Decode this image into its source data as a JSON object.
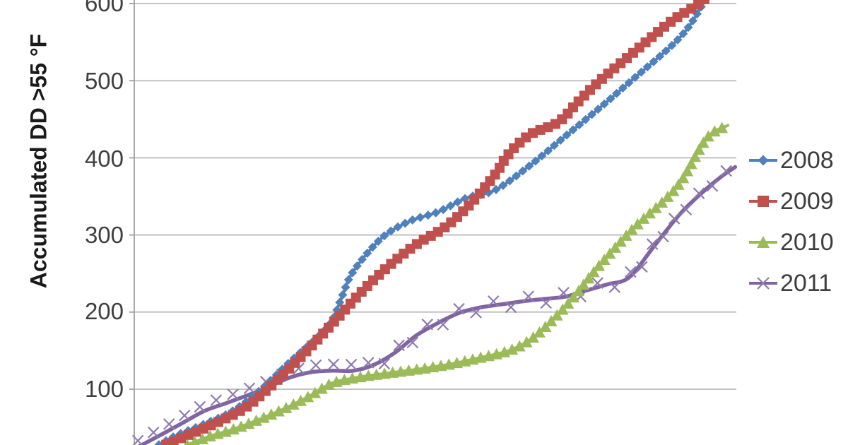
{
  "figure": {
    "background": "#ffffff",
    "note": "Chart cropped: x-axis labels and chart title not visible; top y label 600 partially clipped"
  },
  "colors": {
    "gridline": "#c2c2c2",
    "axis_line": "#a8a8a8",
    "tick_text": "#3f3f3f",
    "legend_text": "#3d3d3d"
  },
  "y_axis": {
    "title": "Accumulated DD >55 °F",
    "ticks": [
      {
        "label": "600",
        "value": 600
      },
      {
        "label": "500",
        "value": 500
      },
      {
        "label": "400",
        "value": 400
      },
      {
        "label": "300",
        "value": 300
      },
      {
        "label": "200",
        "value": 200
      },
      {
        "label": "100",
        "value": 100
      }
    ]
  },
  "legend": {
    "items": [
      {
        "label": "2008",
        "color": "#4F81BD",
        "marker": "diamond"
      },
      {
        "label": "2009",
        "color": "#C0504D",
        "marker": "square"
      },
      {
        "label": "2010",
        "color": "#9BBB59",
        "marker": "triangle"
      },
      {
        "label": "2011",
        "color": "#8064A2",
        "marker": "x"
      }
    ]
  },
  "chart_data": {
    "type": "line",
    "title": "",
    "xlabel": "",
    "ylabel": "Accumulated DD >55 °F",
    "x_axis_note": "x axis (dates) cropped out of visible image; x given as percent across visible plot width",
    "ylim_visible": [
      28,
      615
    ],
    "yticks": [
      100,
      200,
      300,
      400,
      500,
      600
    ],
    "grid": "horizontal",
    "legend_position": "right",
    "series": [
      {
        "name": "2008",
        "color": "#4F81BD",
        "marker": "diamond",
        "marker_size": 13,
        "line_width": 4,
        "marker_spacing": 11.5,
        "points": [
          [
            4.1,
            28
          ],
          [
            7.0,
            40
          ],
          [
            11.7,
            55
          ],
          [
            16.4,
            72
          ],
          [
            21.1,
            100
          ],
          [
            25.8,
            135
          ],
          [
            30.5,
            168
          ],
          [
            32.9,
            190
          ],
          [
            34.6,
            222
          ],
          [
            36.4,
            253
          ],
          [
            41.1,
            296
          ],
          [
            45.8,
            318
          ],
          [
            50.5,
            330
          ],
          [
            55.2,
            348
          ],
          [
            59.9,
            358
          ],
          [
            65.7,
            390
          ],
          [
            71.6,
            428
          ],
          [
            77.5,
            466
          ],
          [
            83.3,
            505
          ],
          [
            89.2,
            545
          ],
          [
            92.1,
            570
          ],
          [
            94.5,
            600
          ],
          [
            95.7,
            615
          ]
        ]
      },
      {
        "name": "2009",
        "color": "#C0504D",
        "marker": "square",
        "marker_size": 14,
        "line_width": 4,
        "marker_spacing": 11.5,
        "points": [
          [
            5.3,
            28
          ],
          [
            9.4,
            42
          ],
          [
            14.1,
            58
          ],
          [
            18.8,
            78
          ],
          [
            23.5,
            110
          ],
          [
            28.2,
            146
          ],
          [
            32.9,
            185
          ],
          [
            37.6,
            225
          ],
          [
            42.3,
            260
          ],
          [
            46.9,
            288
          ],
          [
            51.6,
            310
          ],
          [
            55.8,
            340
          ],
          [
            59.9,
            378
          ],
          [
            62.2,
            405
          ],
          [
            65.7,
            430
          ],
          [
            70.4,
            446
          ],
          [
            73.9,
            474
          ],
          [
            77.5,
            501
          ],
          [
            83.3,
            539
          ],
          [
            89.2,
            577
          ],
          [
            93.9,
            600
          ],
          [
            95.3,
            612
          ]
        ]
      },
      {
        "name": "2010",
        "color": "#9BBB59",
        "marker": "triangle",
        "marker_size": 15,
        "line_width": 4,
        "marker_spacing": 11.5,
        "points": [
          [
            8.8,
            28
          ],
          [
            12.9,
            40
          ],
          [
            16.4,
            48
          ],
          [
            21.1,
            62
          ],
          [
            25.8,
            78
          ],
          [
            29.3,
            92
          ],
          [
            32.9,
            108
          ],
          [
            37.6,
            116
          ],
          [
            42.3,
            121
          ],
          [
            48.1,
            127
          ],
          [
            52.8,
            133
          ],
          [
            57.5,
            141
          ],
          [
            62.2,
            150
          ],
          [
            65.7,
            164
          ],
          [
            69.2,
            188
          ],
          [
            72.8,
            218
          ],
          [
            76.3,
            252
          ],
          [
            79.8,
            283
          ],
          [
            83.3,
            312
          ],
          [
            88.0,
            345
          ],
          [
            91.0,
            372
          ],
          [
            95.1,
            426
          ],
          [
            98.6,
            442
          ]
        ]
      },
      {
        "name": "2011",
        "color": "#8064A2",
        "marker": "x",
        "marker_size": 15,
        "line_width": 5.5,
        "marker_spacing": 25,
        "points": [
          [
            0.6,
            25
          ],
          [
            4.7,
            42
          ],
          [
            8.2,
            57
          ],
          [
            11.7,
            72
          ],
          [
            15.3,
            82
          ],
          [
            18.8,
            92
          ],
          [
            22.3,
            103
          ],
          [
            25.8,
            115
          ],
          [
            29.3,
            122
          ],
          [
            32.9,
            124
          ],
          [
            36.4,
            124
          ],
          [
            39.9,
            132
          ],
          [
            43.4,
            148
          ],
          [
            46.9,
            170
          ],
          [
            50.5,
            186
          ],
          [
            54.0,
            199
          ],
          [
            57.5,
            206
          ],
          [
            61.0,
            210
          ],
          [
            64.6,
            214
          ],
          [
            68.1,
            217
          ],
          [
            71.6,
            220
          ],
          [
            75.1,
            228
          ],
          [
            78.6,
            236
          ],
          [
            82.2,
            245
          ],
          [
            86.3,
            285
          ],
          [
            90.4,
            325
          ],
          [
            93.9,
            352
          ],
          [
            97.4,
            375
          ],
          [
            99.8,
            388
          ]
        ]
      }
    ]
  }
}
